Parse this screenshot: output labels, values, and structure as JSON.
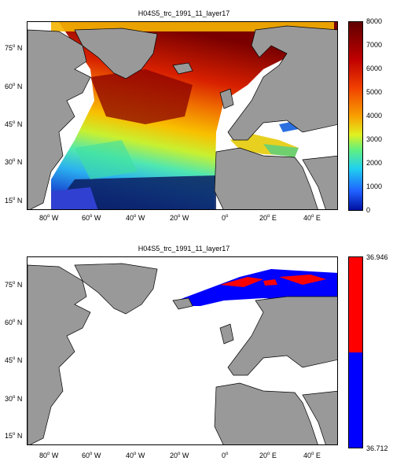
{
  "panels": [
    {
      "title": "H04S5_trc_1991_11_layer17",
      "colorbar": {
        "ticks": [
          "8000",
          "7000",
          "6000",
          "5000",
          "4000",
          "3000",
          "2000",
          "1000",
          "0"
        ]
      }
    },
    {
      "title": "H04S5_trc_1991_11_layer17",
      "colorbar": {
        "max_label": "36.946",
        "min_label": "36.712",
        "colors": {
          "upper": "#ff0000",
          "lower": "#0000ff"
        }
      }
    }
  ],
  "axes": {
    "lat_ticks": [
      "75",
      "60",
      "45",
      "30",
      "15"
    ],
    "lat_hemisphere": "N",
    "lon_ticks": [
      {
        "value": "80",
        "hem": "W"
      },
      {
        "value": "60",
        "hem": "W"
      },
      {
        "value": "40",
        "hem": "W"
      },
      {
        "value": "20",
        "hem": "W"
      },
      {
        "value": "0",
        "hem": ""
      },
      {
        "value": "20",
        "hem": "E"
      },
      {
        "value": "40",
        "hem": "E"
      }
    ],
    "degree_symbol": "o"
  },
  "colors": {
    "land": "#999999",
    "coast": "#000000",
    "ocean_empty": "#ffffff"
  }
}
